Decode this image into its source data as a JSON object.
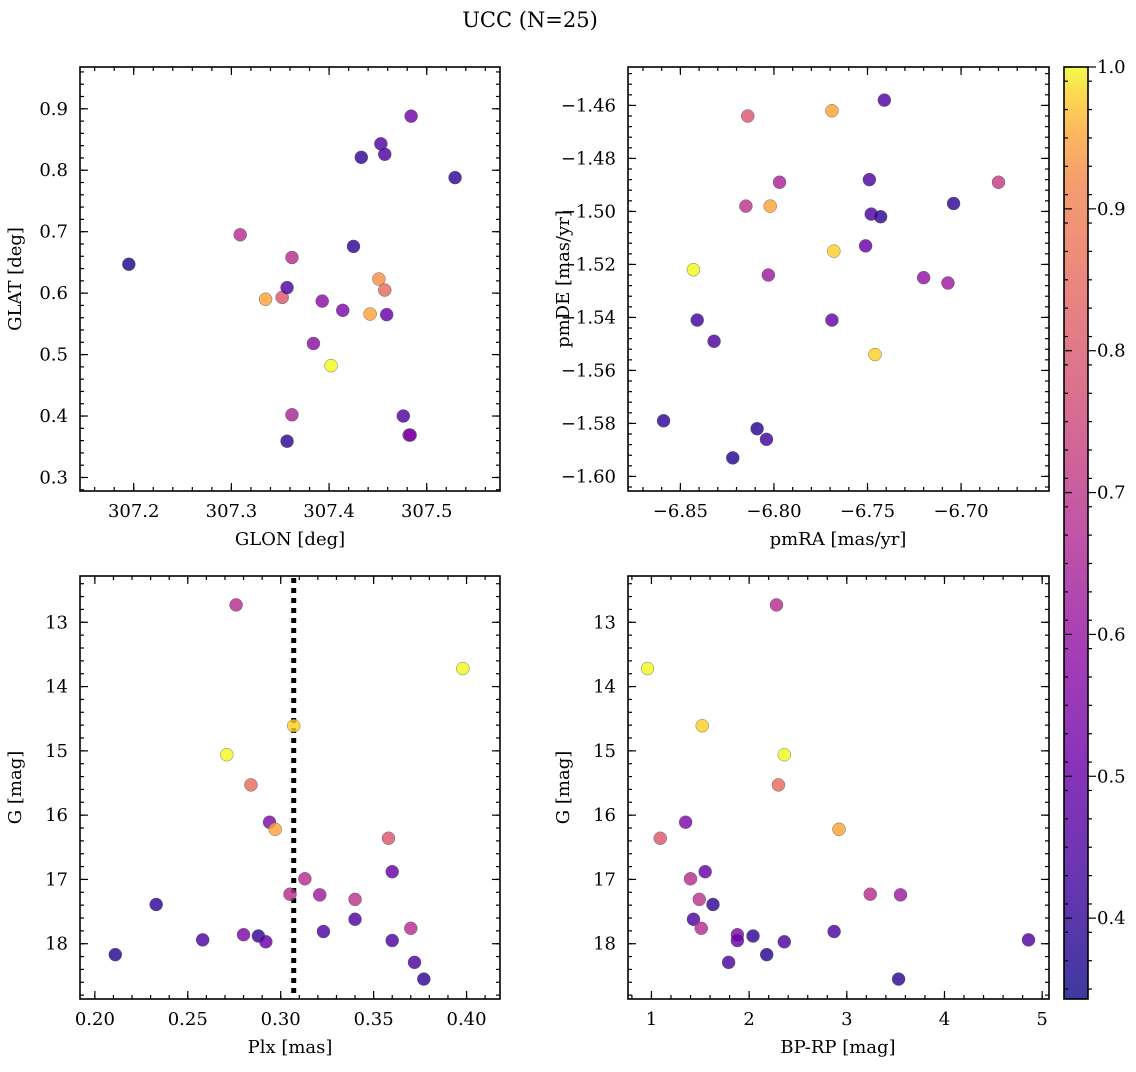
{
  "figure": {
    "title": "UCC (N=25)"
  },
  "colorbar": {
    "colormap": "plasma",
    "vmin": 0.343,
    "vmax": 1.0,
    "tick_labels": [
      "0.4",
      "0.5",
      "0.6",
      "0.7",
      "0.8",
      "0.9",
      "1.0"
    ],
    "tick_values": [
      0.4,
      0.5,
      0.6,
      0.7,
      0.8,
      0.9,
      1.0
    ]
  },
  "chart_data": [
    {
      "type": "scatter",
      "name": "glon-glat",
      "xlabel": "GLON [deg]",
      "ylabel": "GLAT [deg]",
      "xlim": [
        307.145,
        307.575
      ],
      "ylim": [
        0.278,
        0.968
      ],
      "invert_y": false,
      "xticks": [
        307.2,
        307.3,
        307.4,
        307.5
      ],
      "xtick_labels": [
        "307.2",
        "307.3",
        "307.4",
        "307.5"
      ],
      "yticks": [
        0.3,
        0.4,
        0.5,
        0.6,
        0.7,
        0.8,
        0.9
      ],
      "ytick_labels": [
        "0.3",
        "0.4",
        "0.5",
        "0.6",
        "0.7",
        "0.8",
        "0.9"
      ],
      "points": [
        {
          "x": 307.195,
          "y": 0.647,
          "c": 0.36
        },
        {
          "x": 307.309,
          "y": 0.695,
          "c": 0.68
        },
        {
          "x": 307.335,
          "y": 0.59,
          "c": 0.95
        },
        {
          "x": 307.352,
          "y": 0.593,
          "c": 0.8
        },
        {
          "x": 307.357,
          "y": 0.609,
          "c": 0.45
        },
        {
          "x": 307.357,
          "y": 0.359,
          "c": 0.4
        },
        {
          "x": 307.362,
          "y": 0.658,
          "c": 0.68
        },
        {
          "x": 307.362,
          "y": 0.402,
          "c": 0.65
        },
        {
          "x": 307.384,
          "y": 0.518,
          "c": 0.58
        },
        {
          "x": 307.393,
          "y": 0.587,
          "c": 0.58
        },
        {
          "x": 307.402,
          "y": 0.482,
          "c": 1.0
        },
        {
          "x": 307.414,
          "y": 0.572,
          "c": 0.55
        },
        {
          "x": 307.425,
          "y": 0.676,
          "c": 0.4
        },
        {
          "x": 307.433,
          "y": 0.821,
          "c": 0.4
        },
        {
          "x": 307.442,
          "y": 0.566,
          "c": 0.95
        },
        {
          "x": 307.451,
          "y": 0.623,
          "c": 0.93
        },
        {
          "x": 307.453,
          "y": 0.843,
          "c": 0.45
        },
        {
          "x": 307.457,
          "y": 0.826,
          "c": 0.45
        },
        {
          "x": 307.457,
          "y": 0.605,
          "c": 0.85
        },
        {
          "x": 307.459,
          "y": 0.565,
          "c": 0.5
        },
        {
          "x": 307.476,
          "y": 0.4,
          "c": 0.45
        },
        {
          "x": 307.482,
          "y": 0.369,
          "c": 0.6
        },
        {
          "x": 307.483,
          "y": 0.369,
          "c": 0.55
        },
        {
          "x": 307.484,
          "y": 0.888,
          "c": 0.52
        },
        {
          "x": 307.529,
          "y": 0.788,
          "c": 0.4
        }
      ]
    },
    {
      "type": "scatter",
      "name": "pm",
      "xlabel": "pmRA [mas/yr]",
      "ylabel": "pmDE [mas/yr]",
      "xlim": [
        -6.878,
        -6.653
      ],
      "ylim": [
        -1.6055,
        -1.4455
      ],
      "invert_y": false,
      "xticks": [
        -6.85,
        -6.8,
        -6.75,
        -6.7
      ],
      "xtick_labels": [
        "−6.85",
        "−6.80",
        "−6.75",
        "−6.70"
      ],
      "yticks": [
        -1.6,
        -1.58,
        -1.56,
        -1.54,
        -1.52,
        -1.5,
        -1.48,
        -1.46
      ],
      "ytick_labels": [
        "−1.60",
        "−1.58",
        "−1.56",
        "−1.54",
        "−1.52",
        "−1.50",
        "−1.48",
        "−1.46"
      ],
      "points": [
        {
          "x": -6.741,
          "y": -1.458,
          "c": 0.45
        },
        {
          "x": -6.769,
          "y": -1.462,
          "c": 0.95
        },
        {
          "x": -6.814,
          "y": -1.464,
          "c": 0.8
        },
        {
          "x": -6.797,
          "y": -1.489,
          "c": 0.65
        },
        {
          "x": -6.749,
          "y": -1.488,
          "c": 0.45
        },
        {
          "x": -6.68,
          "y": -1.489,
          "c": 0.72
        },
        {
          "x": -6.815,
          "y": -1.498,
          "c": 0.7
        },
        {
          "x": -6.802,
          "y": -1.498,
          "c": 0.95
        },
        {
          "x": -6.704,
          "y": -1.497,
          "c": 0.4
        },
        {
          "x": -6.748,
          "y": -1.501,
          "c": 0.45
        },
        {
          "x": -6.743,
          "y": -1.502,
          "c": 0.4
        },
        {
          "x": -6.751,
          "y": -1.513,
          "c": 0.5
        },
        {
          "x": -6.768,
          "y": -1.515,
          "c": 0.98
        },
        {
          "x": -6.843,
          "y": -1.522,
          "c": 1.0
        },
        {
          "x": -6.803,
          "y": -1.524,
          "c": 0.62
        },
        {
          "x": -6.72,
          "y": -1.525,
          "c": 0.6
        },
        {
          "x": -6.707,
          "y": -1.527,
          "c": 0.62
        },
        {
          "x": -6.841,
          "y": -1.541,
          "c": 0.42
        },
        {
          "x": -6.769,
          "y": -1.541,
          "c": 0.5
        },
        {
          "x": -6.832,
          "y": -1.549,
          "c": 0.45
        },
        {
          "x": -6.746,
          "y": -1.554,
          "c": 0.98
        },
        {
          "x": -6.859,
          "y": -1.579,
          "c": 0.4
        },
        {
          "x": -6.809,
          "y": -1.582,
          "c": 0.38
        },
        {
          "x": -6.804,
          "y": -1.586,
          "c": 0.42
        },
        {
          "x": -6.822,
          "y": -1.593,
          "c": 0.38
        }
      ]
    },
    {
      "type": "scatter",
      "name": "plx-g",
      "xlabel": "Plx [mas]",
      "ylabel": "G [mag]",
      "xlim": [
        0.192,
        0.418
      ],
      "ylim": [
        12.28,
        18.86
      ],
      "invert_y": true,
      "xticks": [
        0.2,
        0.25,
        0.3,
        0.35,
        0.4
      ],
      "xtick_labels": [
        "0.20",
        "0.25",
        "0.30",
        "0.35",
        "0.40"
      ],
      "yticks": [
        13,
        14,
        15,
        16,
        17,
        18
      ],
      "ytick_labels": [
        "13",
        "14",
        "15",
        "16",
        "17",
        "18"
      ],
      "vline": {
        "x": 0.307,
        "style": "dotted"
      },
      "points": [
        {
          "x": 0.276,
          "y": 12.73,
          "c": 0.68
        },
        {
          "x": 0.398,
          "y": 13.72,
          "c": 1.0
        },
        {
          "x": 0.307,
          "y": 14.61,
          "c": 0.98
        },
        {
          "x": 0.271,
          "y": 15.06,
          "c": 1.0
        },
        {
          "x": 0.284,
          "y": 15.53,
          "c": 0.85
        },
        {
          "x": 0.294,
          "y": 16.11,
          "c": 0.55
        },
        {
          "x": 0.297,
          "y": 16.22,
          "c": 0.95
        },
        {
          "x": 0.358,
          "y": 16.36,
          "c": 0.8
        },
        {
          "x": 0.36,
          "y": 16.88,
          "c": 0.5
        },
        {
          "x": 0.313,
          "y": 16.99,
          "c": 0.68
        },
        {
          "x": 0.305,
          "y": 17.23,
          "c": 0.68
        },
        {
          "x": 0.321,
          "y": 17.24,
          "c": 0.62
        },
        {
          "x": 0.34,
          "y": 17.31,
          "c": 0.7
        },
        {
          "x": 0.233,
          "y": 17.39,
          "c": 0.4
        },
        {
          "x": 0.34,
          "y": 17.62,
          "c": 0.45
        },
        {
          "x": 0.37,
          "y": 17.76,
          "c": 0.68
        },
        {
          "x": 0.323,
          "y": 17.81,
          "c": 0.45
        },
        {
          "x": 0.28,
          "y": 17.86,
          "c": 0.55
        },
        {
          "x": 0.288,
          "y": 17.88,
          "c": 0.4
        },
        {
          "x": 0.258,
          "y": 17.94,
          "c": 0.45
        },
        {
          "x": 0.292,
          "y": 17.97,
          "c": 0.5
        },
        {
          "x": 0.36,
          "y": 17.95,
          "c": 0.45
        },
        {
          "x": 0.211,
          "y": 18.17,
          "c": 0.38
        },
        {
          "x": 0.372,
          "y": 18.29,
          "c": 0.45
        },
        {
          "x": 0.377,
          "y": 18.55,
          "c": 0.4
        }
      ]
    },
    {
      "type": "scatter",
      "name": "color-mag",
      "xlabel": "BP-RP [mag]",
      "ylabel": "G [mag]",
      "xlim": [
        0.76,
        5.07
      ],
      "ylim": [
        12.28,
        18.86
      ],
      "invert_y": true,
      "xticks": [
        1,
        2,
        3,
        4,
        5
      ],
      "xtick_labels": [
        "1",
        "2",
        "3",
        "4",
        "5"
      ],
      "yticks": [
        13,
        14,
        15,
        16,
        17,
        18
      ],
      "ytick_labels": [
        "13",
        "14",
        "15",
        "16",
        "17",
        "18"
      ],
      "points": [
        {
          "x": 2.28,
          "y": 12.73,
          "c": 0.68
        },
        {
          "x": 0.96,
          "y": 13.72,
          "c": 1.0
        },
        {
          "x": 1.52,
          "y": 14.61,
          "c": 0.98
        },
        {
          "x": 2.36,
          "y": 15.06,
          "c": 1.0
        },
        {
          "x": 2.3,
          "y": 15.53,
          "c": 0.85
        },
        {
          "x": 1.35,
          "y": 16.11,
          "c": 0.55
        },
        {
          "x": 2.92,
          "y": 16.22,
          "c": 0.95
        },
        {
          "x": 1.09,
          "y": 16.36,
          "c": 0.8
        },
        {
          "x": 1.55,
          "y": 16.88,
          "c": 0.5
        },
        {
          "x": 1.4,
          "y": 16.99,
          "c": 0.68
        },
        {
          "x": 3.24,
          "y": 17.23,
          "c": 0.68
        },
        {
          "x": 3.55,
          "y": 17.24,
          "c": 0.62
        },
        {
          "x": 1.49,
          "y": 17.31,
          "c": 0.7
        },
        {
          "x": 1.63,
          "y": 17.39,
          "c": 0.4
        },
        {
          "x": 1.43,
          "y": 17.62,
          "c": 0.45
        },
        {
          "x": 1.51,
          "y": 17.76,
          "c": 0.68
        },
        {
          "x": 2.87,
          "y": 17.81,
          "c": 0.45
        },
        {
          "x": 1.88,
          "y": 17.86,
          "c": 0.55
        },
        {
          "x": 2.04,
          "y": 17.88,
          "c": 0.4
        },
        {
          "x": 4.86,
          "y": 17.94,
          "c": 0.45
        },
        {
          "x": 1.88,
          "y": 17.95,
          "c": 0.5
        },
        {
          "x": 2.36,
          "y": 17.97,
          "c": 0.45
        },
        {
          "x": 2.18,
          "y": 18.17,
          "c": 0.38
        },
        {
          "x": 1.79,
          "y": 18.29,
          "c": 0.45
        },
        {
          "x": 3.53,
          "y": 18.55,
          "c": 0.4
        }
      ]
    }
  ]
}
